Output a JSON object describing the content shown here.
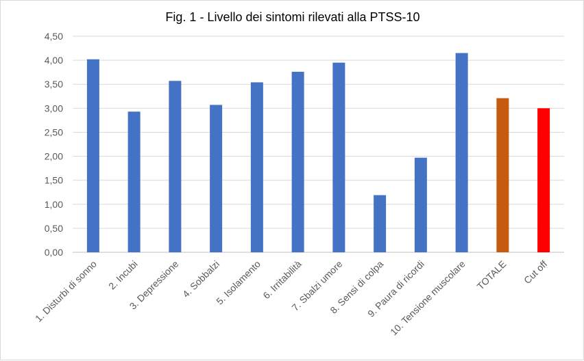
{
  "chart_data": {
    "type": "bar",
    "title": "Fig. 1 - Livello dei sintomi rilevati alla PTSS-10",
    "xlabel": "",
    "ylabel": "",
    "ylim": [
      0,
      4.5
    ],
    "y_ticks": [
      "0,00",
      "0,50",
      "1,00",
      "1,50",
      "2,00",
      "2,50",
      "3,00",
      "3,50",
      "4,00",
      "4,50"
    ],
    "grid": true,
    "legend": "none",
    "categories": [
      "1. Disturbi di sonno",
      "2. Incubi",
      "3. Depressione",
      "4. Sobbalzi",
      "5. Isolamento",
      "6. Irritabilità",
      "7. Sbalzi umore",
      "8. Sensi di colpa",
      "9. Paura di ricordi",
      "10. Tensione muscolare",
      "TOTALE",
      "Cut off"
    ],
    "values": [
      4.02,
      2.93,
      3.57,
      3.07,
      3.54,
      3.76,
      3.95,
      1.19,
      1.97,
      4.15,
      3.21,
      3.0
    ],
    "colors": [
      "#4472C4",
      "#4472C4",
      "#4472C4",
      "#4472C4",
      "#4472C4",
      "#4472C4",
      "#4472C4",
      "#4472C4",
      "#4472C4",
      "#4472C4",
      "#C55A11",
      "#FF0000"
    ]
  }
}
